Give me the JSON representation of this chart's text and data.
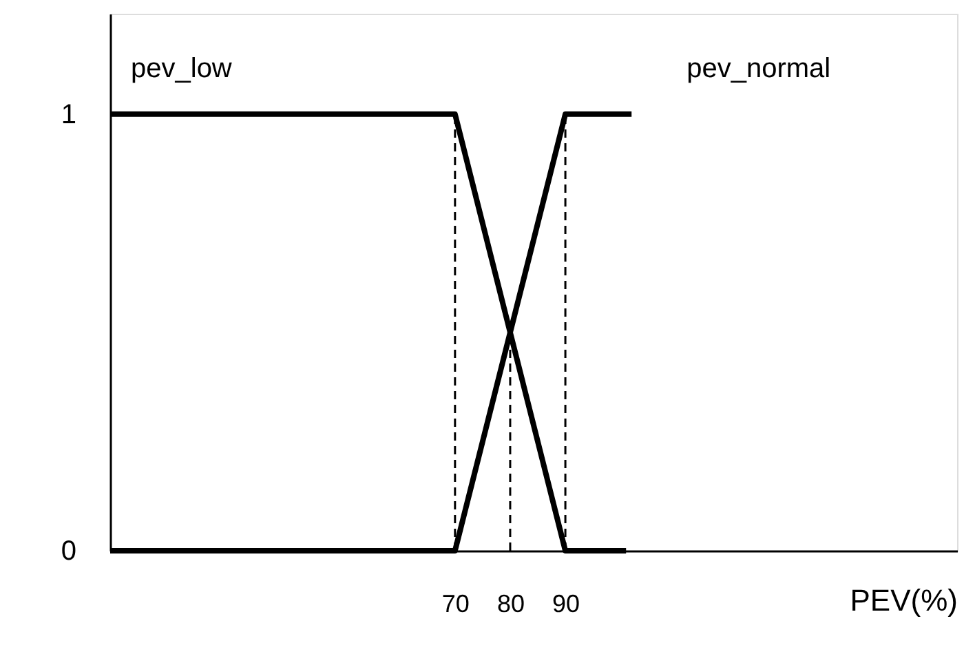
{
  "chart_data": {
    "type": "line",
    "xlabel": "PEV(%)",
    "xlim": [
      7.5,
      161
    ],
    "ylim": [
      0,
      1.23
    ],
    "xticks": [
      70,
      80,
      90
    ],
    "yticks": [
      0,
      1
    ],
    "grid": false,
    "marker": "none",
    "series": [
      {
        "name": "pev_low",
        "color": "#000000",
        "x": [
          7.5,
          70,
          90,
          101
        ],
        "values": [
          1,
          1,
          0,
          0
        ],
        "line_style": "solid"
      },
      {
        "name": "pev_normal",
        "color": "#000000",
        "x": [
          7.5,
          70,
          90,
          102
        ],
        "values": [
          0,
          0,
          1,
          1
        ],
        "line_style": "solid"
      }
    ],
    "ref_lines": [
      {
        "axis": "x",
        "value": 70,
        "color": "#000000",
        "line_style": "dashed"
      },
      {
        "axis": "x",
        "value": 80,
        "color": "#000000",
        "line_style": "dashed"
      },
      {
        "axis": "x",
        "value": 90,
        "color": "#000000",
        "line_style": "dashed"
      }
    ]
  }
}
